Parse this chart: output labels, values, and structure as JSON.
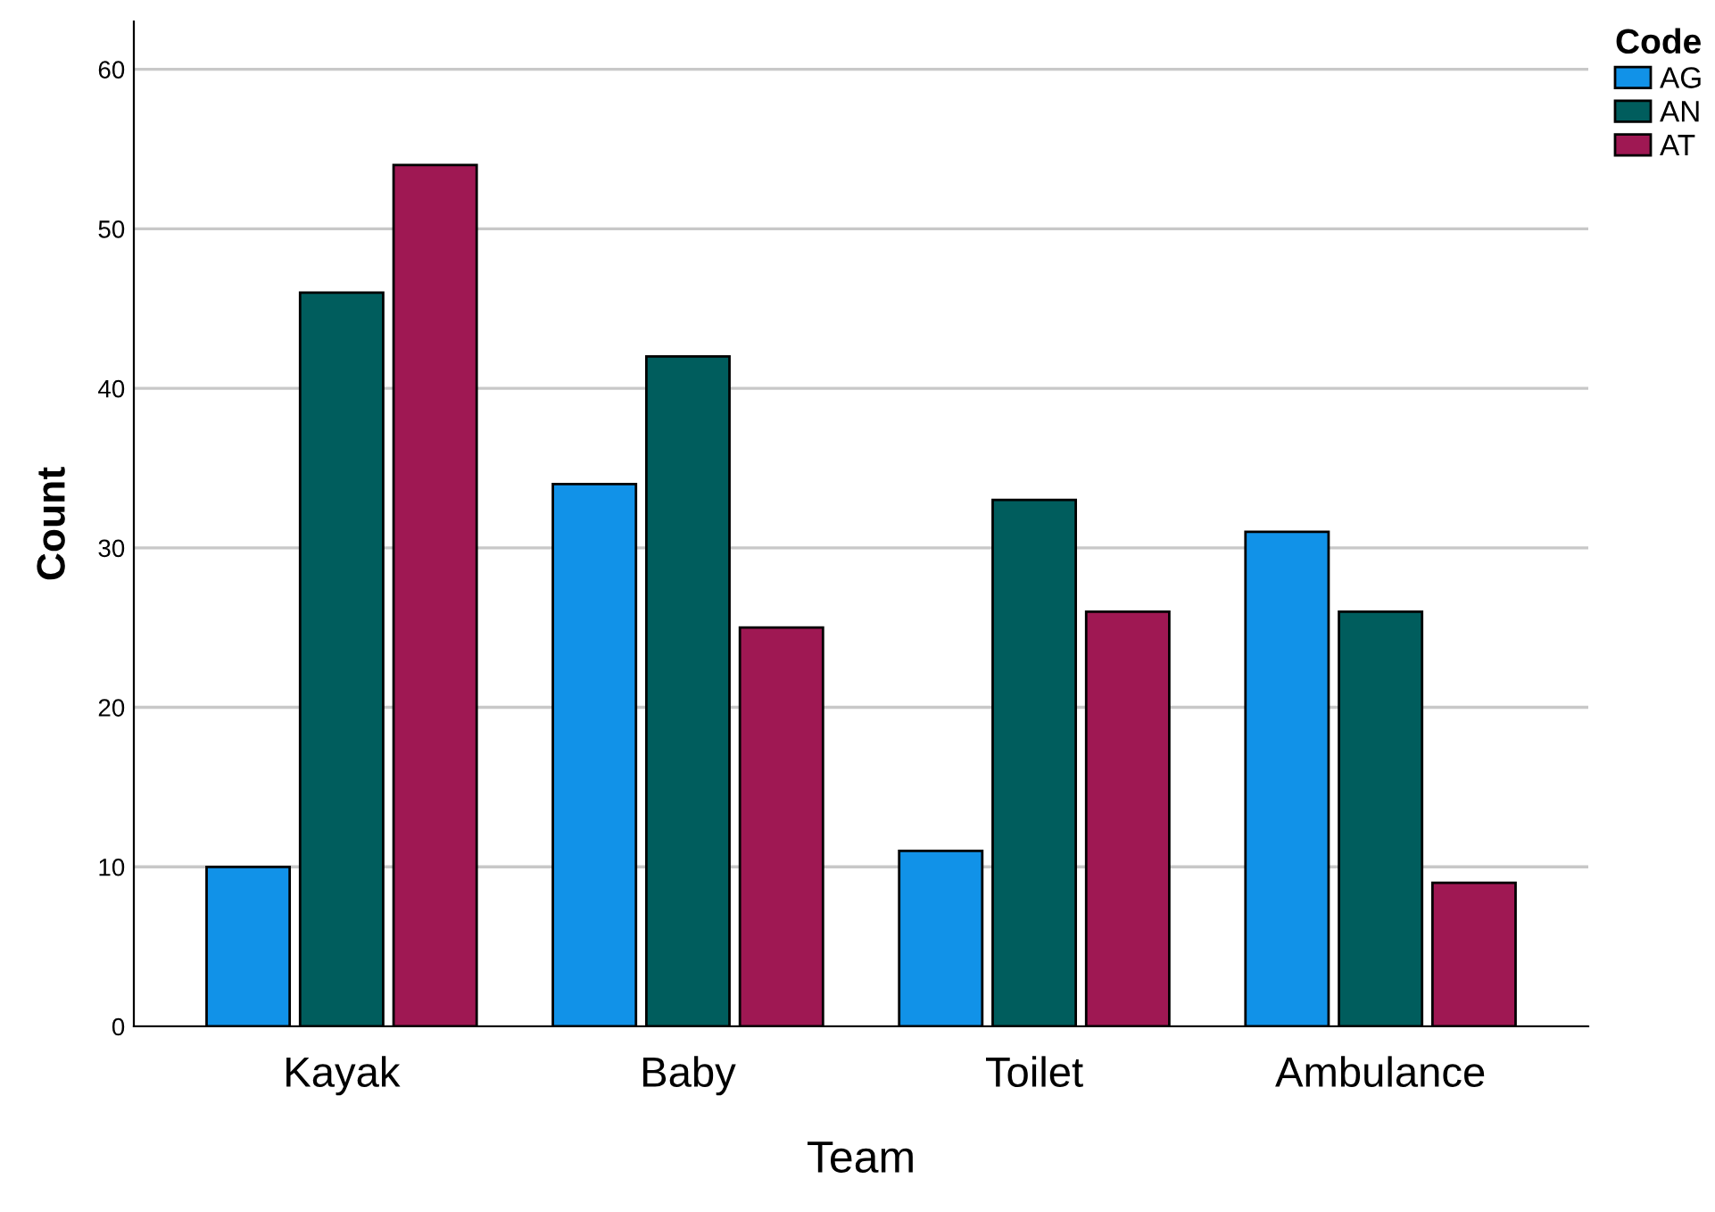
{
  "chart_data": {
    "type": "bar",
    "xlabel": "Team",
    "ylabel": "Count",
    "legend_title": "Code",
    "categories": [
      "Kayak",
      "Baby",
      "Toilet",
      "Ambulance"
    ],
    "series": [
      {
        "name": "AG",
        "color": "#1192e8",
        "values": [
          10,
          34,
          11,
          31
        ]
      },
      {
        "name": "AN",
        "color": "#005d5d",
        "values": [
          46,
          42,
          33,
          26
        ]
      },
      {
        "name": "AT",
        "color": "#9f1853",
        "values": [
          54,
          25,
          26,
          9
        ]
      }
    ],
    "ylim": [
      0,
      63
    ],
    "yticks": [
      0,
      10,
      20,
      30,
      40,
      50,
      60
    ],
    "grid": "y",
    "legend": "top right"
  }
}
